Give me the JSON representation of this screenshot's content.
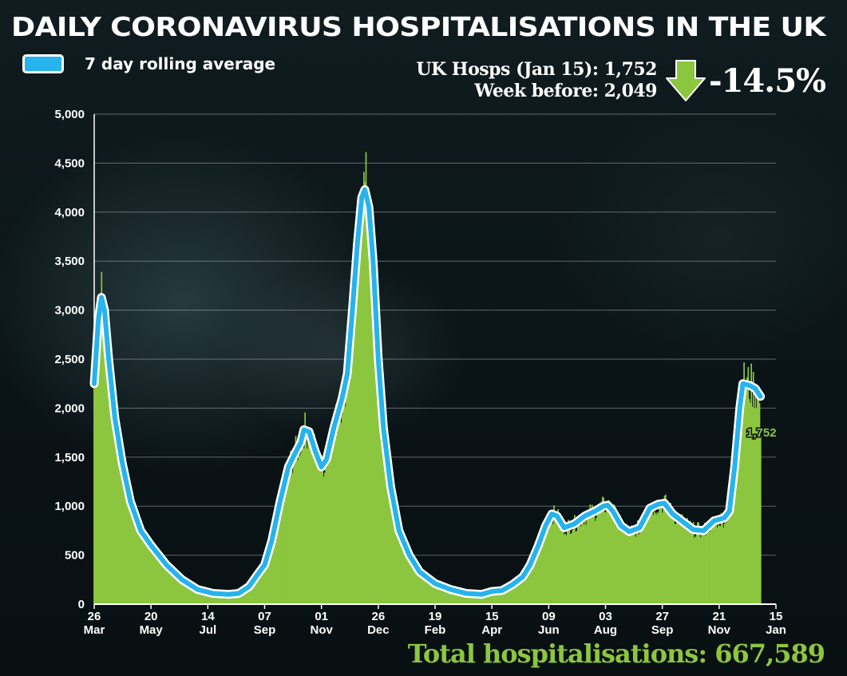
{
  "title": "DAILY CORONAVIRUS HOSPITALISATIONS IN THE UK",
  "legend": {
    "label": "7 day rolling average",
    "color": "#26b3ee"
  },
  "stats": {
    "current": "UK Hosps (Jan 15): 1,752",
    "week_before": "Week before: 2,049",
    "change": "-14.5%",
    "arrow_icon": "down-arrow-icon",
    "arrow_color": "#8cc63f"
  },
  "total": "Total hospitalisations: 667,589",
  "chart_data": {
    "type": "bar",
    "bar_color": "#8cc63f",
    "line_color": "#26b3ee",
    "ylim": [
      0,
      5000
    ],
    "y_ticks": [
      "0",
      "500",
      "1,000",
      "1,500",
      "2,000",
      "2,500",
      "3,000",
      "3,500",
      "4,000",
      "4,500",
      "5,000"
    ],
    "x_ticks": [
      {
        "day": "26",
        "month": "Mar"
      },
      {
        "day": "20",
        "month": "May"
      },
      {
        "day": "14",
        "month": "Jul"
      },
      {
        "day": "07",
        "month": "Sep"
      },
      {
        "day": "01",
        "month": "Nov"
      },
      {
        "day": "26",
        "month": "Dec"
      },
      {
        "day": "19",
        "month": "Feb"
      },
      {
        "day": "15",
        "month": "Apr"
      },
      {
        "day": "09",
        "month": "Jun"
      },
      {
        "day": "03",
        "month": "Aug"
      },
      {
        "day": "27",
        "month": "Sep"
      },
      {
        "day": "21",
        "month": "Nov"
      },
      {
        "day": "15",
        "month": "Jan"
      }
    ],
    "last_value_label": "1,752",
    "days_between_ticks": 55,
    "rolling_average_anchors": [
      [
        0,
        2250
      ],
      [
        4,
        2900
      ],
      [
        7,
        3130
      ],
      [
        10,
        3000
      ],
      [
        14,
        2500
      ],
      [
        20,
        1900
      ],
      [
        27,
        1450
      ],
      [
        35,
        1050
      ],
      [
        45,
        750
      ],
      [
        55,
        600
      ],
      [
        70,
        400
      ],
      [
        85,
        250
      ],
      [
        100,
        150
      ],
      [
        115,
        110
      ],
      [
        130,
        100
      ],
      [
        140,
        110
      ],
      [
        150,
        180
      ],
      [
        158,
        300
      ],
      [
        165,
        400
      ],
      [
        172,
        650
      ],
      [
        180,
        1050
      ],
      [
        188,
        1400
      ],
      [
        195,
        1550
      ],
      [
        200,
        1650
      ],
      [
        203,
        1780
      ],
      [
        208,
        1760
      ],
      [
        214,
        1560
      ],
      [
        220,
        1400
      ],
      [
        225,
        1480
      ],
      [
        232,
        1800
      ],
      [
        240,
        2100
      ],
      [
        245,
        2350
      ],
      [
        250,
        3000
      ],
      [
        255,
        3700
      ],
      [
        259,
        4150
      ],
      [
        262,
        4230
      ],
      [
        266,
        4050
      ],
      [
        270,
        3500
      ],
      [
        275,
        2500
      ],
      [
        280,
        1800
      ],
      [
        287,
        1200
      ],
      [
        295,
        750
      ],
      [
        305,
        500
      ],
      [
        315,
        330
      ],
      [
        330,
        210
      ],
      [
        345,
        150
      ],
      [
        360,
        110
      ],
      [
        375,
        100
      ],
      [
        385,
        130
      ],
      [
        395,
        140
      ],
      [
        405,
        200
      ],
      [
        415,
        280
      ],
      [
        422,
        400
      ],
      [
        430,
        600
      ],
      [
        437,
        800
      ],
      [
        443,
        920
      ],
      [
        448,
        900
      ],
      [
        455,
        780
      ],
      [
        465,
        820
      ],
      [
        475,
        900
      ],
      [
        485,
        950
      ],
      [
        493,
        1000
      ],
      [
        497,
        1010
      ],
      [
        502,
        950
      ],
      [
        510,
        800
      ],
      [
        518,
        740
      ],
      [
        528,
        780
      ],
      [
        538,
        980
      ],
      [
        546,
        1020
      ],
      [
        552,
        1030
      ],
      [
        560,
        920
      ],
      [
        570,
        840
      ],
      [
        580,
        760
      ],
      [
        590,
        750
      ],
      [
        600,
        850
      ],
      [
        610,
        880
      ],
      [
        615,
        950
      ],
      [
        620,
        1400
      ],
      [
        625,
        2000
      ],
      [
        628,
        2250
      ],
      [
        635,
        2230
      ],
      [
        640,
        2200
      ],
      [
        645,
        2120
      ]
    ],
    "daily_last_values": [
      2200,
      2150,
      2050,
      1752
    ]
  }
}
